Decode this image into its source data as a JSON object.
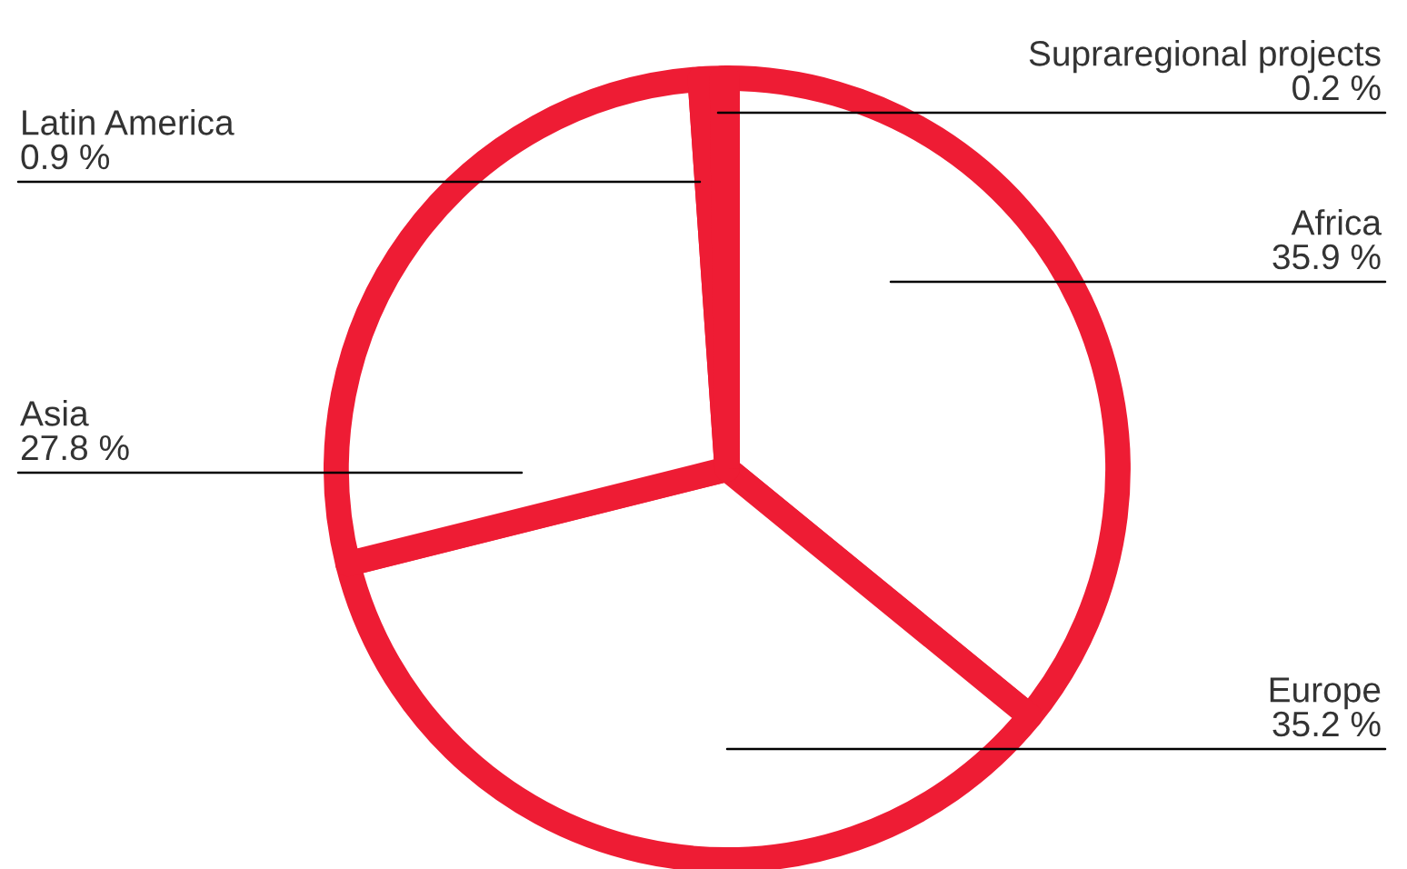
{
  "chart_data": {
    "type": "pie",
    "categories": [
      "Africa",
      "Europe",
      "Asia",
      "Latin America",
      "Supraregional projects"
    ],
    "values": [
      35.9,
      35.2,
      27.8,
      0.9,
      0.2
    ],
    "value_labels": [
      "35.9 %",
      "35.2 %",
      "27.8 %",
      "0.9 %",
      "0.2 %"
    ],
    "colors": [
      "#ee1c34",
      "#ee1c34",
      "#ee1c34",
      "#ee1c34",
      "#ee1c34"
    ],
    "legend": false
  }
}
